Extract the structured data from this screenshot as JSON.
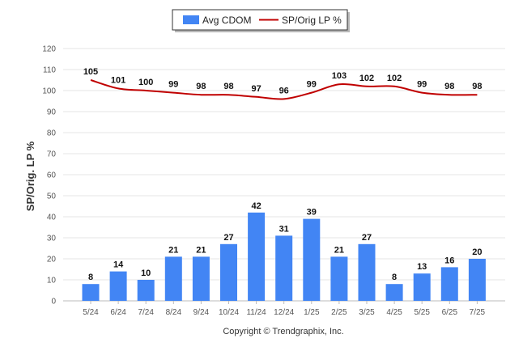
{
  "chart_data": {
    "type": "bar",
    "categories": [
      "5/24",
      "6/24",
      "7/24",
      "8/24",
      "9/24",
      "10/24",
      "11/24",
      "12/24",
      "1/25",
      "2/25",
      "3/25",
      "4/25",
      "5/25",
      "6/25",
      "7/25"
    ],
    "series": [
      {
        "name": "Avg CDOM",
        "type": "bar",
        "color": "#4285f4",
        "values": [
          8,
          14,
          10,
          21,
          21,
          27,
          42,
          31,
          39,
          21,
          27,
          8,
          13,
          16,
          20
        ]
      },
      {
        "name": "SP/Orig LP %",
        "type": "line",
        "color": "#c00000",
        "values": [
          105,
          101,
          100,
          99,
          98,
          98,
          97,
          96,
          99,
          103,
          102,
          102,
          99,
          98,
          98
        ]
      }
    ],
    "ylabel": "SP/Orig. LP %",
    "xlabel": "",
    "ylim": [
      0,
      120
    ],
    "yticks": [
      0,
      10,
      20,
      30,
      40,
      50,
      60,
      70,
      80,
      90,
      100,
      110,
      120
    ],
    "grid": true,
    "legend": "top-center"
  },
  "footer": {
    "copyright": "Copyright © Trendgraphix, Inc."
  }
}
